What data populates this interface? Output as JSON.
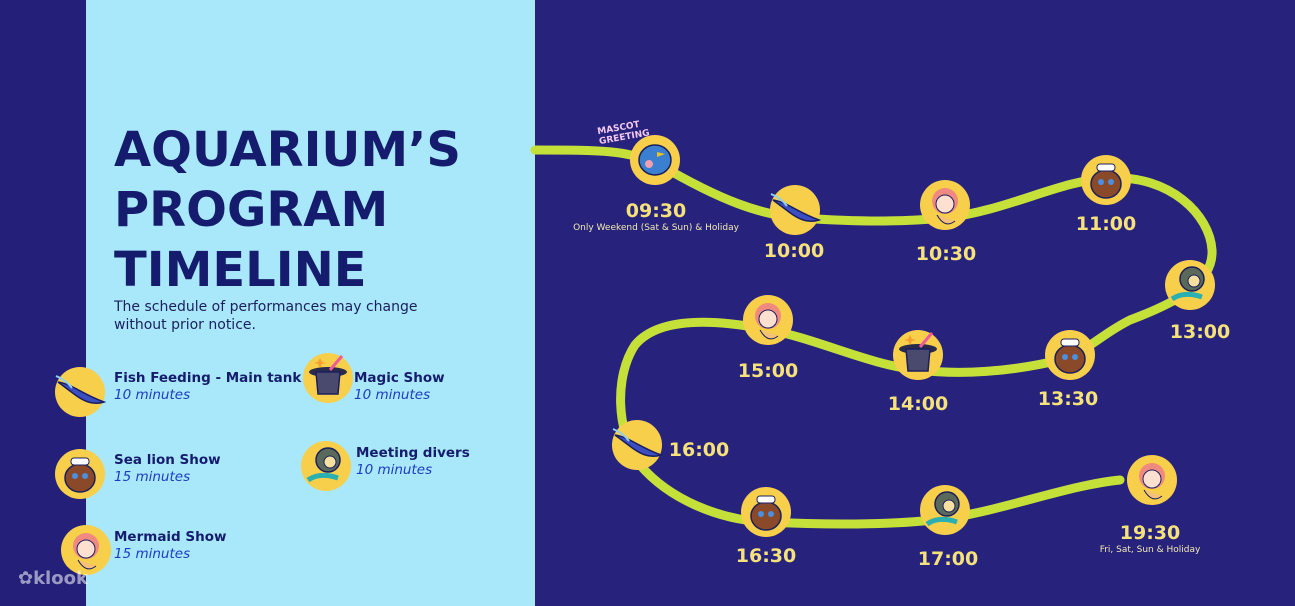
{
  "title": [
    "AQUARIUM’S",
    "PROGRAM",
    "TIMELINE"
  ],
  "subtitle": "The schedule of performances may change without prior notice.",
  "legend": [
    {
      "name": "Fish Feeding - Main tank",
      "duration": "10 minutes",
      "icon": "stingray-icon"
    },
    {
      "name": "Sea lion Show",
      "duration": "15 minutes",
      "icon": "sea-lion-icon"
    },
    {
      "name": "Mermaid Show",
      "duration": "15 minutes",
      "icon": "mermaid-icon"
    },
    {
      "name": "Magic Show",
      "duration": "10 minutes",
      "icon": "magic-hat-icon"
    },
    {
      "name": "Meeting divers",
      "duration": "10 minutes",
      "icon": "diver-icon"
    }
  ],
  "mascot_label": "MASCOT GREETING",
  "timeline": [
    {
      "time": "09:30",
      "icon": "mascot-icon",
      "note": "Only Weekend (Sat & Sun) & Holiday"
    },
    {
      "time": "10:00",
      "icon": "stingray-icon"
    },
    {
      "time": "10:30",
      "icon": "mermaid-icon"
    },
    {
      "time": "11:00",
      "icon": "sea-lion-icon"
    },
    {
      "time": "13:00",
      "icon": "diver-icon"
    },
    {
      "time": "13:30",
      "icon": "sea-lion-icon"
    },
    {
      "time": "14:00",
      "icon": "magic-hat-icon"
    },
    {
      "time": "15:00",
      "icon": "mermaid-icon"
    },
    {
      "time": "16:00",
      "icon": "stingray-icon"
    },
    {
      "time": "16:30",
      "icon": "sea-lion-icon"
    },
    {
      "time": "17:00",
      "icon": "diver-icon"
    },
    {
      "time": "19:30",
      "icon": "mermaid-icon",
      "note": "Fri, Sat, Sun & Holiday"
    }
  ],
  "logo": "klook",
  "colors": {
    "background": "#27237d",
    "panel": "#a9e8fb",
    "title": "#151c6e",
    "path": "#c6e03a",
    "time": "#f6e27a",
    "badge": "#f7cf4a"
  }
}
